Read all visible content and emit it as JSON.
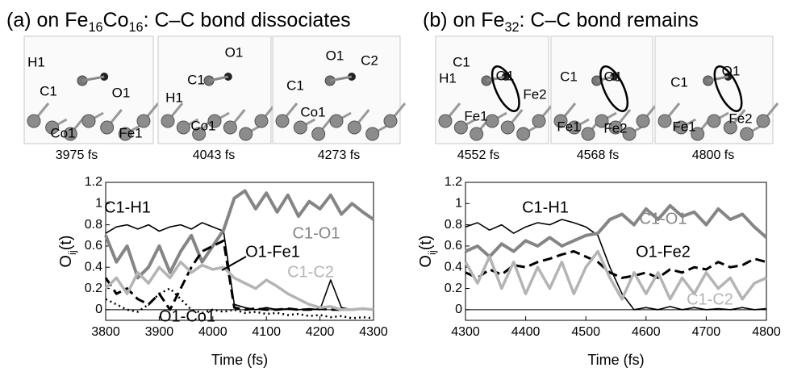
{
  "chart_data": [
    {
      "type": "line",
      "title": [
        {
          "text": "(a)  on Fe"
        },
        {
          "text": "16",
          "sub": true
        },
        {
          "text": "Co"
        },
        {
          "text": "16",
          "sub": true
        },
        {
          "text": ": C–C bond dissociates"
        }
      ],
      "snapshots": [
        {
          "time": "3975 fs",
          "labels": [
            "H1",
            "C1",
            "O1",
            "Co1",
            "Fe1"
          ]
        },
        {
          "time": "4043 fs",
          "labels": [
            "O1",
            "C1",
            "H1",
            "Co1"
          ]
        },
        {
          "time": "4273 fs",
          "labels": [
            "O1",
            "C2",
            "C1",
            "Co1"
          ]
        }
      ],
      "ylabel": [
        {
          "text": "O"
        },
        {
          "text": "ij",
          "sub": true
        },
        {
          "text": "(t)"
        }
      ],
      "xlabel": "Time (fs)",
      "x": [
        3800,
        3820,
        3840,
        3860,
        3880,
        3900,
        3920,
        3940,
        3960,
        3980,
        4000,
        4020,
        4040,
        4060,
        4080,
        4100,
        4120,
        4140,
        4160,
        4180,
        4200,
        4220,
        4240,
        4260,
        4280,
        4300
      ],
      "xlim": [
        3800,
        4300
      ],
      "xticks": [
        3800,
        3900,
        4000,
        4100,
        4200,
        4300
      ],
      "ylim": [
        -0.1,
        1.2
      ],
      "yticks": [
        0,
        0.2,
        0.4,
        0.6,
        0.8,
        1,
        1.2
      ],
      "series": [
        {
          "name": "C1-H1",
          "color": "#000000",
          "width": 1.6,
          "dash": "solid",
          "values": [
            0.72,
            0.78,
            0.8,
            0.76,
            0.8,
            0.74,
            0.78,
            0.8,
            0.76,
            0.82,
            0.78,
            0.74,
            0.05,
            0.02,
            0,
            0.02,
            0,
            0.01,
            0,
            0.01,
            0,
            0.28,
            0.02,
            0,
            0.01,
            0
          ]
        },
        {
          "name": "C1-O1",
          "color": "#858585",
          "width": 4,
          "dash": "solid",
          "values": [
            0.7,
            0.45,
            0.6,
            0.3,
            0.4,
            0.6,
            0.35,
            0.55,
            0.7,
            0.45,
            0.6,
            0.75,
            1.05,
            1.12,
            0.95,
            1.1,
            0.92,
            1.08,
            0.88,
            1.02,
            0.95,
            1.08,
            0.9,
            1,
            0.92,
            0.85
          ]
        },
        {
          "name": "O1-Fe1",
          "color": "#000000",
          "width": 3,
          "dash": "dashed",
          "values": [
            0.3,
            0.15,
            0.2,
            0.1,
            0.05,
            0.15,
            0,
            0.2,
            0.4,
            0.55,
            0.6,
            0.65,
            0.02,
            0,
            0.01,
            0,
            0,
            0.01,
            0,
            0,
            0.01,
            0,
            0,
            0,
            0.01,
            0
          ]
        },
        {
          "name": "C1-C2",
          "color": "#b4b4b4",
          "width": 3.5,
          "dash": "solid",
          "values": [
            0.2,
            0.3,
            0.15,
            0.35,
            0.25,
            0.4,
            0.3,
            0.45,
            0.35,
            0.42,
            0.38,
            0.4,
            0.3,
            0.25,
            0.2,
            0.28,
            0.22,
            0.15,
            0.1,
            0.05,
            0.02,
            0.03,
            0,
            0,
            0.01,
            0
          ]
        },
        {
          "name": "O1-Co1",
          "color": "#000000",
          "width": 2.5,
          "dash": "dotted",
          "values": [
            0.1,
            0.05,
            0,
            -0.02,
            0.05,
            0.15,
            0.2,
            0.1,
            0,
            -0.03,
            0,
            -0.02,
            0,
            -0.03,
            -0.02,
            -0.04,
            -0.03,
            -0.05,
            -0.04,
            -0.06,
            -0.05,
            -0.07,
            -0.06,
            -0.08,
            -0.07,
            -0.08
          ]
        }
      ]
    },
    {
      "type": "line",
      "title": [
        {
          "text": "(b)  on Fe"
        },
        {
          "text": "32",
          "sub": true
        },
        {
          "text": ": C–C bond remains"
        }
      ],
      "snapshots": [
        {
          "time": "4552 fs",
          "labels": [
            "C1",
            "O1",
            "H1",
            "Fe2",
            "Fe1"
          ]
        },
        {
          "time": "4568 fs",
          "labels": [
            "C1",
            "O1",
            "Fe1",
            "Fe2"
          ]
        },
        {
          "time": "4800 fs",
          "labels": [
            "C1",
            "O1",
            "Fe1",
            "Fe2"
          ]
        }
      ],
      "ylabel": [
        {
          "text": "O"
        },
        {
          "text": "ij",
          "sub": true
        },
        {
          "text": "(t)"
        }
      ],
      "xlabel": "Time (fs)",
      "x": [
        4300,
        4320,
        4340,
        4360,
        4380,
        4400,
        4420,
        4440,
        4460,
        4480,
        4500,
        4520,
        4540,
        4560,
        4580,
        4600,
        4620,
        4640,
        4660,
        4680,
        4700,
        4720,
        4740,
        4760,
        4780,
        4800
      ],
      "xlim": [
        4300,
        4800
      ],
      "xticks": [
        4300,
        4400,
        4500,
        4600,
        4700,
        4800
      ],
      "ylim": [
        -0.1,
        1.2
      ],
      "yticks": [
        0,
        0.2,
        0.4,
        0.6,
        0.8,
        1,
        1.2
      ],
      "series": [
        {
          "name": "C1-H1",
          "color": "#000000",
          "width": 1.6,
          "dash": "solid",
          "values": [
            0.78,
            0.82,
            0.75,
            0.8,
            0.72,
            0.78,
            0.82,
            0.8,
            0.85,
            0.82,
            0.78,
            0.7,
            0.4,
            0.15,
            0,
            0.02,
            0,
            0.03,
            0,
            0.02,
            0,
            0.01,
            0,
            0.02,
            0,
            0.01
          ]
        },
        {
          "name": "C1-O1",
          "color": "#858585",
          "width": 4,
          "dash": "solid",
          "values": [
            0.55,
            0.6,
            0.5,
            0.62,
            0.55,
            0.65,
            0.6,
            0.68,
            0.6,
            0.65,
            0.7,
            0.72,
            0.85,
            0.9,
            0.8,
            0.95,
            0.85,
            0.98,
            0.88,
            0.92,
            0.8,
            0.95,
            0.85,
            0.9,
            0.78,
            0.68
          ]
        },
        {
          "name": "O1-Fe2",
          "color": "#000000",
          "width": 3,
          "dash": "dashed",
          "values": [
            0.35,
            0.3,
            0.38,
            0.33,
            0.42,
            0.4,
            0.45,
            0.48,
            0.52,
            0.55,
            0.5,
            0.45,
            0.35,
            0.3,
            0.32,
            0.35,
            0.3,
            0.38,
            0.35,
            0.4,
            0.38,
            0.45,
            0.4,
            0.42,
            0.48,
            0.45
          ]
        },
        {
          "name": "C1-C2",
          "color": "#b4b4b4",
          "width": 3.5,
          "dash": "solid",
          "values": [
            0.45,
            0.25,
            0.5,
            0.2,
            0.45,
            0.15,
            0.4,
            0.2,
            0.45,
            0.15,
            0.4,
            0.55,
            0.3,
            0.1,
            0.35,
            0.15,
            0.35,
            0.1,
            0.3,
            0.15,
            0.35,
            0.2,
            0.3,
            0.1,
            0.25,
            0.3
          ]
        }
      ]
    }
  ]
}
